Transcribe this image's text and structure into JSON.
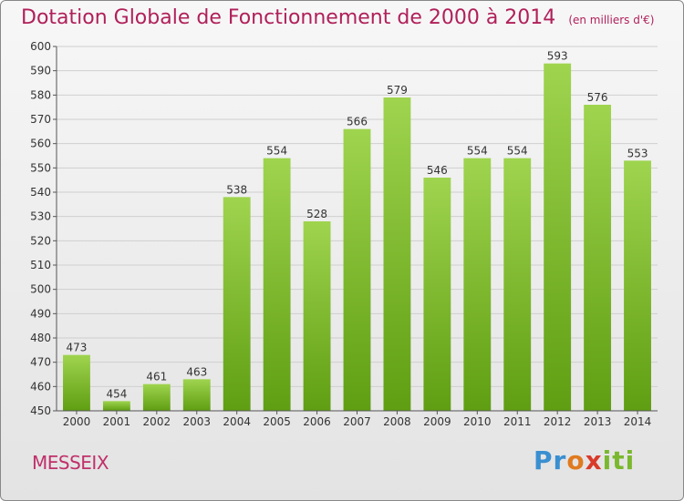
{
  "chart_data": {
    "type": "bar",
    "title": "Dotation Globale de Fonctionnement de 2000 à 2014",
    "subtitle": "(en milliers d'€)",
    "categories": [
      "2000",
      "2001",
      "2002",
      "2003",
      "2004",
      "2005",
      "2006",
      "2007",
      "2008",
      "2009",
      "2010",
      "2011",
      "2012",
      "2013",
      "2014"
    ],
    "values": [
      473,
      454,
      461,
      463,
      538,
      554,
      528,
      566,
      579,
      546,
      554,
      554,
      593,
      576,
      553
    ],
    "ylim": [
      450,
      600
    ],
    "yticks": [
      450,
      460,
      470,
      480,
      490,
      500,
      510,
      520,
      530,
      540,
      550,
      560,
      570,
      580,
      590,
      600
    ],
    "xlabel": "",
    "ylabel": "",
    "grid": true,
    "bar_color": "#7ab82e"
  },
  "footer": {
    "commune": "MESSEIX",
    "logo_parts": [
      "Pr",
      "o",
      "x",
      "iti"
    ]
  }
}
